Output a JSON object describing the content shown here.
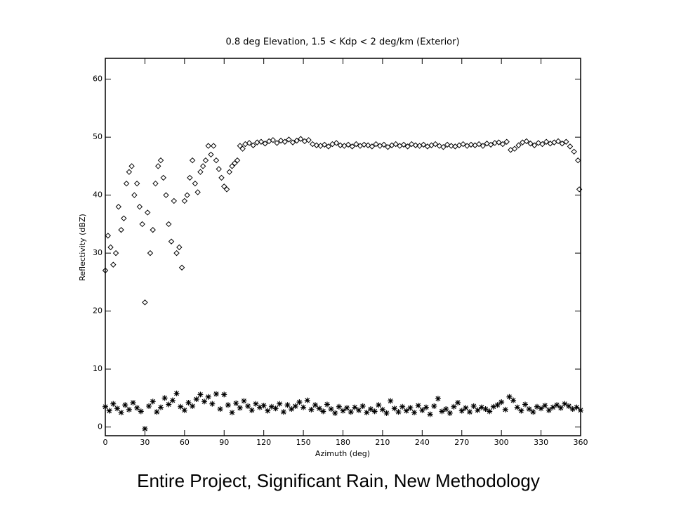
{
  "chart_data": {
    "type": "scatter",
    "title": "0.8 deg Elevation, 1.5 < Kdp < 2 deg/km (Exterior)",
    "x_label": "Azimuth (deg)",
    "y_label": "Reflectivity (dBZ)",
    "caption": "Entire Project, Significant Rain, New Methodology",
    "xlim": [
      0,
      360
    ],
    "xticks": [
      0,
      30,
      60,
      90,
      120,
      150,
      180,
      210,
      240,
      270,
      300,
      330,
      360
    ],
    "ylim": [
      -1.5,
      63.6
    ],
    "yticks": [
      0,
      10,
      20,
      30,
      40,
      50,
      60
    ],
    "grid": false,
    "series": [
      {
        "marker": "diamond",
        "color": "#000000",
        "x": [
          0,
          2,
          4,
          6,
          8,
          10,
          12,
          14,
          16,
          18,
          20,
          22,
          24,
          26,
          28,
          30,
          32,
          34,
          36,
          38,
          40,
          42,
          44,
          46,
          48,
          50,
          52,
          54,
          56,
          58,
          60,
          62,
          64,
          66,
          68,
          70,
          72,
          74,
          76,
          78,
          80,
          82,
          84,
          86,
          88,
          90,
          92,
          94,
          96,
          98,
          100,
          102,
          104,
          106,
          109,
          112,
          115,
          118,
          121,
          124,
          127,
          130,
          133,
          136,
          139,
          142,
          145,
          148,
          151,
          154,
          157,
          160,
          163,
          166,
          169,
          172,
          175,
          178,
          181,
          184,
          187,
          190,
          193,
          196,
          199,
          202,
          205,
          208,
          211,
          214,
          217,
          220,
          223,
          226,
          229,
          232,
          235,
          238,
          241,
          244,
          247,
          250,
          253,
          256,
          259,
          262,
          265,
          268,
          271,
          274,
          277,
          280,
          283,
          286,
          289,
          292,
          295,
          298,
          301,
          304,
          307,
          310,
          313,
          316,
          319,
          322,
          325,
          328,
          331,
          334,
          337,
          340,
          343,
          346,
          349,
          352,
          355,
          358,
          359
        ],
        "values": [
          27,
          33,
          31,
          28,
          30,
          38,
          34,
          36,
          42,
          44,
          45,
          40,
          42,
          38,
          35,
          21.5,
          37,
          30,
          34,
          42,
          45,
          46,
          43,
          40,
          35,
          32,
          39,
          30,
          31,
          27.5,
          39,
          40,
          43,
          46,
          42,
          40.5,
          44,
          45,
          46,
          48.5,
          47,
          48.5,
          46,
          44.5,
          43,
          41.5,
          41,
          44,
          45,
          45.5,
          46,
          48.5,
          48,
          48.8,
          49,
          48.6,
          49.1,
          49.2,
          48.9,
          49.3,
          49.5,
          49,
          49.4,
          49.2,
          49.6,
          49.1,
          49.4,
          49.7,
          49.3,
          49.5,
          48.8,
          48.6,
          48.5,
          48.7,
          48.4,
          48.8,
          49,
          48.6,
          48.5,
          48.7,
          48.4,
          48.8,
          48.5,
          48.7,
          48.6,
          48.4,
          48.8,
          48.5,
          48.7,
          48.3,
          48.6,
          48.8,
          48.5,
          48.7,
          48.4,
          48.8,
          48.6,
          48.5,
          48.7,
          48.4,
          48.6,
          48.8,
          48.5,
          48.3,
          48.7,
          48.5,
          48.4,
          48.6,
          48.8,
          48.5,
          48.7,
          48.6,
          48.8,
          48.5,
          48.9,
          48.7,
          49,
          49.1,
          48.8,
          49.2,
          47.8,
          48,
          48.6,
          49.1,
          49.3,
          48.9,
          48.6,
          49,
          48.8,
          49.2,
          48.9,
          49.1,
          49.3,
          48.9,
          49.2,
          48.4,
          47.5,
          46,
          41
        ]
      },
      {
        "marker": "star",
        "color": "#000000",
        "x": [
          0,
          3,
          6,
          9,
          12,
          15,
          18,
          21,
          24,
          27,
          30,
          33,
          36,
          39,
          42,
          45,
          48,
          51,
          54,
          57,
          60,
          63,
          66,
          69,
          72,
          75,
          78,
          81,
          84,
          87,
          90,
          93,
          96,
          99,
          102,
          105,
          108,
          111,
          114,
          117,
          120,
          123,
          126,
          129,
          132,
          135,
          138,
          141,
          144,
          147,
          150,
          153,
          156,
          159,
          162,
          165,
          168,
          171,
          174,
          177,
          180,
          183,
          186,
          189,
          192,
          195,
          198,
          201,
          204,
          207,
          210,
          213,
          216,
          219,
          222,
          225,
          228,
          231,
          234,
          237,
          240,
          243,
          246,
          249,
          252,
          255,
          258,
          261,
          264,
          267,
          270,
          273,
          276,
          279,
          282,
          285,
          288,
          291,
          294,
          297,
          300,
          303,
          306,
          309,
          312,
          315,
          318,
          321,
          324,
          327,
          330,
          333,
          336,
          339,
          342,
          345,
          348,
          351,
          354,
          357,
          360
        ],
        "values": [
          3.5,
          2.8,
          4,
          3.2,
          2.5,
          3.8,
          3,
          4.2,
          3.3,
          2.7,
          -0.3,
          3.6,
          4.4,
          2.6,
          3.4,
          5,
          3.9,
          4.6,
          5.8,
          3.5,
          2.9,
          4.2,
          3.6,
          4.8,
          5.6,
          4.4,
          5.2,
          4,
          5.7,
          3.1,
          5.6,
          3.8,
          2.5,
          4.1,
          3.3,
          4.5,
          3.6,
          2.9,
          4,
          3.4,
          3.7,
          2.8,
          3.5,
          3.2,
          4,
          2.6,
          3.8,
          3.1,
          3.6,
          4.3,
          3.4,
          4.6,
          3,
          3.8,
          3.2,
          2.7,
          3.9,
          3.1,
          2.4,
          3.5,
          2.8,
          3.3,
          2.6,
          3.4,
          2.9,
          3.6,
          2.5,
          3.1,
          2.7,
          3.8,
          3,
          2.4,
          4.5,
          3.2,
          2.6,
          3.5,
          2.8,
          3.3,
          2.5,
          3.7,
          2.9,
          3.4,
          2.2,
          3.6,
          4.9,
          2.7,
          3.1,
          2.4,
          3.5,
          4.2,
          2.8,
          3.3,
          2.6,
          3.6,
          2.9,
          3.4,
          3.1,
          2.7,
          3.5,
          3.8,
          4.3,
          3,
          5.2,
          4.6,
          3.4,
          2.8,
          3.9,
          3.1,
          2.6,
          3.5,
          3.2,
          3.7,
          2.9,
          3.4,
          3.8,
          3.3,
          4,
          3.6,
          3.1,
          3.4,
          2.9
        ]
      }
    ]
  }
}
